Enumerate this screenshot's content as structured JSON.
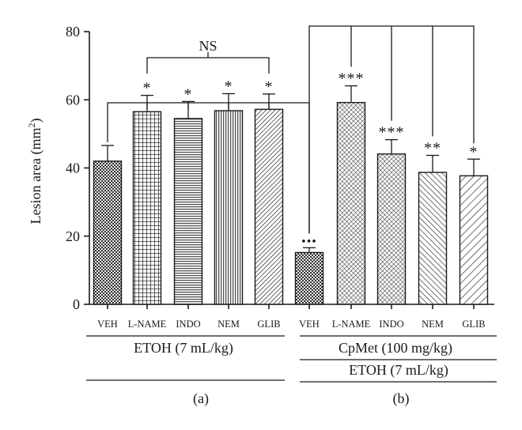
{
  "chart_data": {
    "type": "bar",
    "ylabel": "Lesion area (mm",
    "ylabel_sup": "2",
    "ylabel_close": ")",
    "ylim": [
      0,
      80
    ],
    "yticks": [
      "0",
      "20",
      "40",
      "60",
      "80"
    ],
    "yticks_values": [
      0,
      20,
      40,
      60,
      80
    ],
    "categories": [
      "VEH",
      "L-NAME",
      "INDO",
      "NEM",
      "GLIB",
      "VEH",
      "L-NAME",
      "INDO",
      "NEM",
      "GLIB"
    ],
    "values": [
      42,
      56.5,
      54.5,
      56.8,
      57.2,
      15.2,
      59.2,
      44.1,
      38.7,
      37.7
    ],
    "errors": [
      4.6,
      4.8,
      5.0,
      5.0,
      4.5,
      1.4,
      4.9,
      4.2,
      5.0,
      4.9
    ],
    "patterns": [
      "dots",
      "crosshatch",
      "hlines",
      "vlines",
      "diag",
      "dots",
      "fine-crosshatch",
      "fine-crosshatch",
      "diag-back",
      "diag-wide"
    ],
    "markers": [
      "",
      "*",
      "*",
      "*",
      "*",
      "•••",
      "***",
      "***",
      "**",
      "*"
    ],
    "bracket_label": "NS",
    "groups": [
      {
        "label": "ETOH (7 mL/kg)",
        "panel": "(a)"
      },
      {
        "label": "CpMet (100 mg/kg)",
        "label2": "ETOH (7 mL/kg)",
        "panel": "(b)"
      }
    ]
  }
}
